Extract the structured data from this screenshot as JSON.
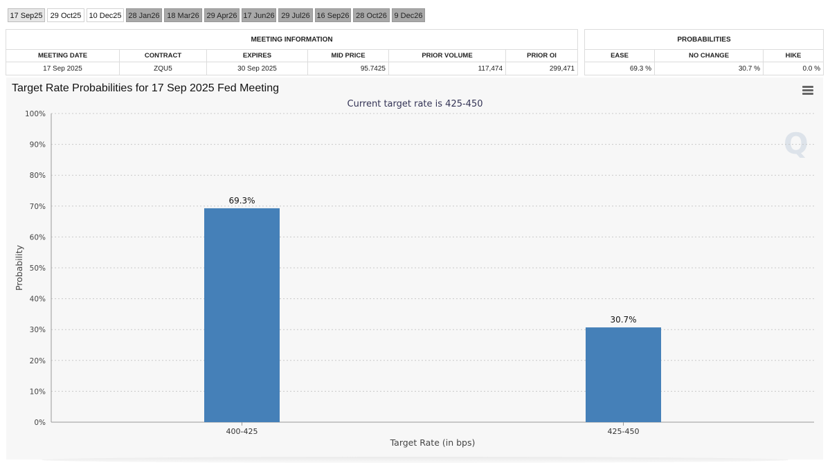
{
  "tabs": [
    {
      "label": "17 Sep25",
      "style": "active"
    },
    {
      "label": "29 Oct25",
      "style": "plain"
    },
    {
      "label": "10 Dec25",
      "style": "plain"
    },
    {
      "label": "28 Jan26",
      "style": "grey"
    },
    {
      "label": "18 Mar26",
      "style": "grey"
    },
    {
      "label": "29 Apr26",
      "style": "grey"
    },
    {
      "label": "17 Jun26",
      "style": "grey"
    },
    {
      "label": "29 Jul26",
      "style": "grey"
    },
    {
      "label": "16 Sep26",
      "style": "grey"
    },
    {
      "label": "28 Oct26",
      "style": "grey"
    },
    {
      "label": "9 Dec26",
      "style": "grey"
    }
  ],
  "meeting_info": {
    "title": "MEETING INFORMATION",
    "headers": [
      "MEETING DATE",
      "CONTRACT",
      "EXPIRES",
      "MID PRICE",
      "PRIOR VOLUME",
      "PRIOR OI"
    ],
    "row": [
      "17 Sep 2025",
      "ZQU5",
      "30 Sep 2025",
      "95.7425",
      "117,474",
      "299,471"
    ]
  },
  "probabilities": {
    "title": "PROBABILITIES",
    "headers": [
      "EASE",
      "NO CHANGE",
      "HIKE"
    ],
    "row": [
      "69.3 %",
      "30.7 %",
      "0.0 %"
    ]
  },
  "chart_data": {
    "type": "bar",
    "title": "Target Rate Probabilities for 17 Sep 2025 Fed Meeting",
    "subtitle": "Current target rate is 425-450",
    "xlabel": "Target Rate (in bps)",
    "ylabel": "Probability",
    "categories": [
      "400-425",
      "425-450"
    ],
    "values": [
      69.3,
      30.7
    ],
    "data_labels": [
      "69.3%",
      "30.7%"
    ],
    "ylim": [
      0,
      100
    ],
    "yticks": [
      "0%",
      "10%",
      "20%",
      "30%",
      "40%",
      "50%",
      "60%",
      "70%",
      "80%",
      "90%",
      "100%"
    ],
    "grid": true,
    "bar_color": "#4580b8",
    "logo": "Q"
  }
}
